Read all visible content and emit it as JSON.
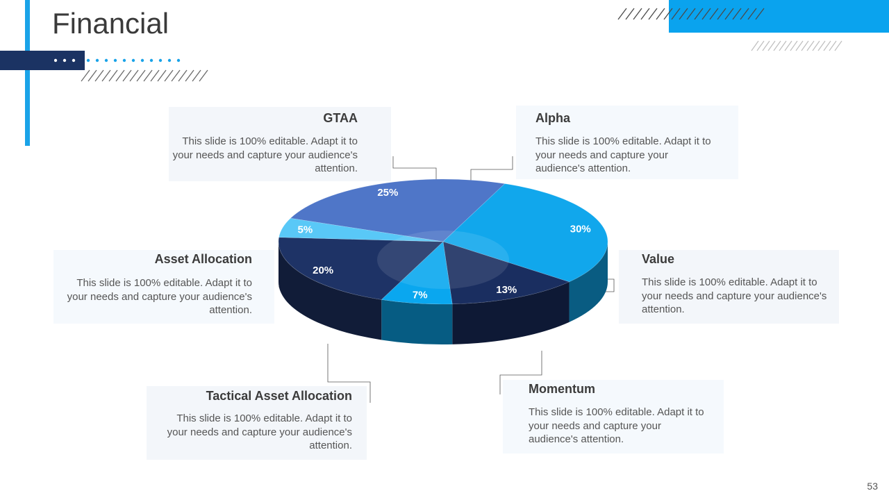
{
  "header": {
    "title": "Financial"
  },
  "colors": {
    "accent": "#1aa3e8",
    "navy": "#1b3363",
    "card_bg": "#f3f6fa"
  },
  "cards": {
    "gtaa": {
      "title": "GTAA",
      "body": "This slide is 100% editable. Adapt it to your needs and capture your audience's attention."
    },
    "alpha": {
      "title": "Alpha",
      "body": "This slide is 100% editable. Adapt it to your needs and capture your audience's attention."
    },
    "asset_allocation": {
      "title": "Asset Allocation",
      "body": "This slide is 100% editable. Adapt it to your needs and capture your audience's attention."
    },
    "value": {
      "title": "Value",
      "body": "This slide is 100% editable. Adapt it to your needs and capture your audience's attention."
    },
    "tactical": {
      "title": "Tactical Asset Allocation",
      "body": "This slide is 100% editable. Adapt it to your needs and capture your audience's attention."
    },
    "momentum": {
      "title": "Momentum",
      "body": "This slide is 100% editable. Adapt it to your needs and capture your audience's attention."
    }
  },
  "chart_data": {
    "type": "pie",
    "style": "3d",
    "slices": [
      {
        "name": "Alpha",
        "value": 25,
        "label": "25%",
        "color": "#4f76c8"
      },
      {
        "name": "Value",
        "value": 30,
        "label": "30%",
        "color": "#11a7ec"
      },
      {
        "name": "Momentum",
        "value": 13,
        "label": "13%",
        "color": "#1a2e60"
      },
      {
        "name": "Tactical Asset Allocation",
        "value": 7,
        "label": "7%",
        "color": "#0aa7ef"
      },
      {
        "name": "Asset Allocation",
        "value": 20,
        "label": "20%",
        "color": "#1e3366"
      },
      {
        "name": "GTAA",
        "value": 5,
        "label": "5%",
        "color": "#59c8f7"
      }
    ]
  },
  "footer": {
    "page_number": "53"
  }
}
